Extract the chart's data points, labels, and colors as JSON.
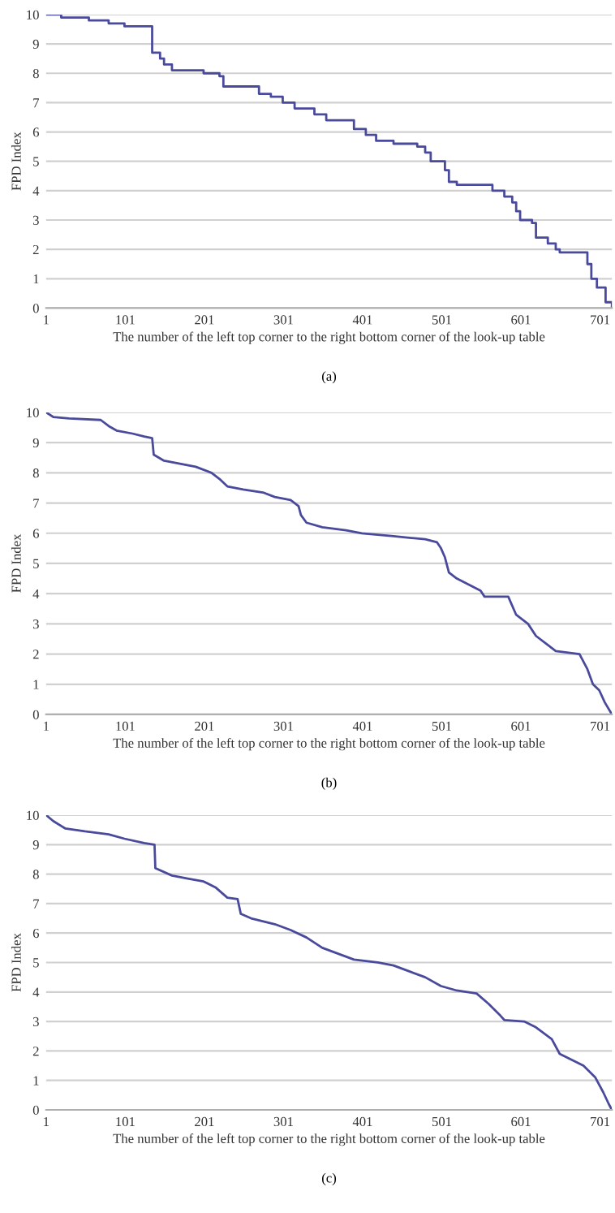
{
  "chart_data": [
    {
      "type": "step",
      "xlabel": "The number of the left top corner to the right bottom corner of the look-up table",
      "ylabel": "FPD Index",
      "annotations": [
        "(a)"
      ],
      "xlim": [
        1,
        716
      ],
      "xticks": [
        1,
        101,
        201,
        301,
        401,
        501,
        601,
        701
      ],
      "ylim": [
        0,
        10
      ],
      "yticks": [
        0,
        1,
        2,
        3,
        4,
        5,
        6,
        7,
        8,
        9,
        10
      ],
      "grid": "y",
      "legend": false,
      "series": [
        {
          "color": "#4a4a9c",
          "x": [
            1,
            20,
            55,
            80,
            100,
            135,
            145,
            150,
            160,
            200,
            220,
            225,
            265,
            270,
            285,
            300,
            315,
            340,
            355,
            390,
            405,
            418,
            440,
            470,
            480,
            487,
            505,
            510,
            520,
            565,
            580,
            590,
            595,
            600,
            615,
            620,
            635,
            645,
            650,
            685,
            690,
            697,
            708,
            716
          ],
          "values": [
            10,
            9.9,
            9.8,
            9.7,
            9.6,
            8.7,
            8.5,
            8.3,
            8.1,
            8.0,
            7.9,
            7.55,
            7.55,
            7.3,
            7.2,
            7.0,
            6.8,
            6.6,
            6.4,
            6.1,
            5.9,
            5.7,
            5.6,
            5.5,
            5.3,
            5.0,
            4.7,
            4.3,
            4.2,
            4.0,
            3.8,
            3.6,
            3.3,
            3.0,
            2.9,
            2.4,
            2.2,
            2.0,
            1.9,
            1.5,
            1.0,
            0.7,
            0.2,
            0
          ]
        }
      ]
    },
    {
      "type": "line",
      "xlabel": "The number of the left top corner to the right bottom corner of the look-up table",
      "ylabel": "FPD Index",
      "annotations": [
        "(b)"
      ],
      "xlim": [
        1,
        716
      ],
      "xticks": [
        1,
        101,
        201,
        301,
        401,
        501,
        601,
        701
      ],
      "ylim": [
        0,
        10
      ],
      "yticks": [
        0,
        1,
        2,
        3,
        4,
        5,
        6,
        7,
        8,
        9,
        10
      ],
      "grid": "y",
      "legend": false,
      "series": [
        {
          "color": "#4a4a9c",
          "x": [
            1,
            10,
            30,
            70,
            80,
            90,
            110,
            125,
            135,
            137,
            150,
            170,
            190,
            210,
            220,
            230,
            250,
            275,
            290,
            310,
            320,
            323,
            330,
            350,
            380,
            400,
            440,
            460,
            480,
            495,
            500,
            505,
            510,
            520,
            535,
            550,
            555,
            585,
            595,
            610,
            620,
            635,
            645,
            675,
            685,
            692,
            700,
            707,
            716
          ],
          "values": [
            10,
            9.85,
            9.8,
            9.75,
            9.55,
            9.4,
            9.3,
            9.2,
            9.15,
            8.6,
            8.4,
            8.3,
            8.2,
            8.0,
            7.8,
            7.55,
            7.45,
            7.35,
            7.2,
            7.1,
            6.9,
            6.6,
            6.35,
            6.2,
            6.1,
            6.0,
            5.9,
            5.85,
            5.8,
            5.7,
            5.5,
            5.2,
            4.7,
            4.5,
            4.3,
            4.1,
            3.9,
            3.9,
            3.3,
            3.0,
            2.6,
            2.3,
            2.1,
            2.0,
            1.5,
            1.0,
            0.8,
            0.4,
            0
          ]
        }
      ]
    },
    {
      "type": "line",
      "xlabel": "The number of the left top corner to the right bottom corner of the look-up table",
      "ylabel": "FPD Index",
      "annotations": [
        "(c)"
      ],
      "xlim": [
        1,
        716
      ],
      "xticks": [
        1,
        101,
        201,
        301,
        401,
        501,
        601,
        701
      ],
      "ylim": [
        0,
        10
      ],
      "yticks": [
        0,
        1,
        2,
        3,
        4,
        5,
        6,
        7,
        8,
        9,
        10
      ],
      "grid": "y",
      "legend": false,
      "series": [
        {
          "color": "#4a4a9c",
          "x": [
            1,
            10,
            25,
            50,
            80,
            100,
            125,
            138,
            139,
            160,
            180,
            200,
            215,
            230,
            243,
            247,
            260,
            290,
            310,
            330,
            350,
            370,
            390,
            420,
            440,
            460,
            480,
            500,
            520,
            545,
            560,
            575,
            580,
            605,
            620,
            640,
            650,
            665,
            680,
            695,
            705,
            712,
            716
          ],
          "values": [
            10,
            9.8,
            9.55,
            9.45,
            9.35,
            9.2,
            9.05,
            9.0,
            8.2,
            7.95,
            7.85,
            7.75,
            7.55,
            7.2,
            7.15,
            6.65,
            6.5,
            6.3,
            6.1,
            5.85,
            5.5,
            5.3,
            5.1,
            5.0,
            4.9,
            4.7,
            4.5,
            4.2,
            4.05,
            3.95,
            3.6,
            3.2,
            3.05,
            3.0,
            2.8,
            2.4,
            1.9,
            1.7,
            1.5,
            1.1,
            0.6,
            0.2,
            0
          ]
        }
      ]
    }
  ]
}
